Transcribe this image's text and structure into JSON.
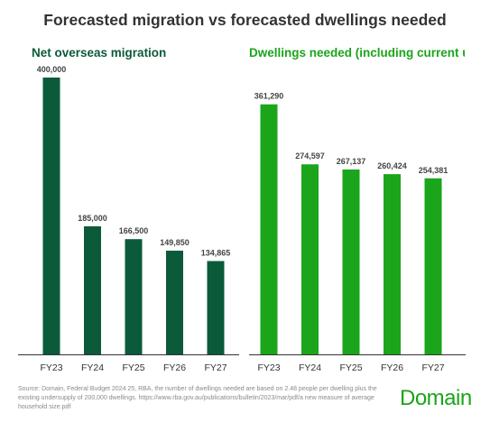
{
  "title": "Forecasted migration vs forecasted dwellings needed",
  "source_note": "Source: Domain, Federal Budget 2024 25, RBA, the number of dwellings needed are based on 2.48 people per dwelling plus the existing undersupply of 200,000 dwellings. https://www.rba.gov.au/publications/bulletin/2023/mar/pdf/a new measure of average household size.pdf",
  "brand": "Domain",
  "colors": {
    "left_bars": "#0b5b3a",
    "right_bars": "#1aa51a",
    "axis": "#333333"
  },
  "chart_data": [
    {
      "type": "bar",
      "title": "Net overseas migration",
      "categories": [
        "FY23",
        "FY24",
        "FY25",
        "FY26",
        "FY27"
      ],
      "values": [
        400000,
        185000,
        166500,
        149850,
        134865
      ],
      "labels": [
        "400,000",
        "185,000",
        "166,500",
        "149,850",
        "134,865"
      ],
      "ylim": [
        0,
        400000
      ],
      "grid": false,
      "legend": "none"
    },
    {
      "type": "bar",
      "title": "Dwellings needed (including current u",
      "categories": [
        "FY23",
        "FY24",
        "FY25",
        "FY26",
        "FY27"
      ],
      "values": [
        361290,
        274597,
        267137,
        260424,
        254381
      ],
      "labels": [
        "361,290",
        "274,597",
        "267,137",
        "260,424",
        "254,381"
      ],
      "ylim": [
        0,
        400000
      ],
      "grid": false,
      "legend": "none"
    }
  ]
}
